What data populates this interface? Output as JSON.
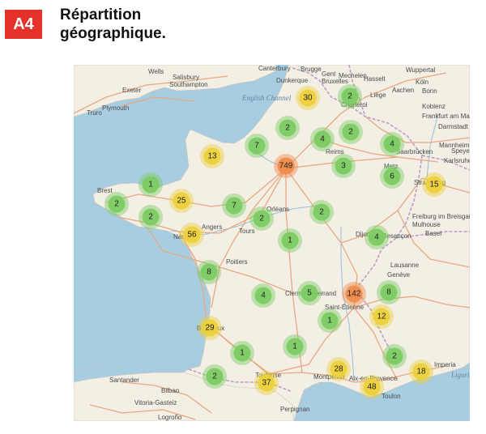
{
  "header": {
    "badge": "A4",
    "title_line1": "Répartition",
    "title_line2": "géographique."
  },
  "colors": {
    "badge": "#e4322b",
    "cluster_small": "#7ccb63",
    "cluster_medium": "#ecd03b",
    "cluster_large": "#f08b4c",
    "sea": "#a9cde0",
    "land": "#f3efe5",
    "roads": "#e8a880",
    "borders": "#b9a0c6"
  },
  "map": {
    "places": [
      "Wells",
      "Salisbury",
      "Southampton",
      "Exeter",
      "Plymouth",
      "Truro",
      "Canterbury",
      "Brugge",
      "Gent",
      "Bruxelles",
      "Mechelen",
      "Hasselt",
      "Wuppertal",
      "Köln",
      "Bonn",
      "Dunkerque",
      "Liège",
      "Aachen",
      "Koblenz",
      "Charleroi",
      "Frankfurt am Main",
      "Darmstadt",
      "Mannheim",
      "Speyer",
      "Karlsruhe",
      "Saarbrücken",
      "Metz",
      "Reims",
      "Strasbourg",
      "Freiburg im Breisgau",
      "Mulhouse",
      "Basel",
      "Brest",
      "Angers",
      "Tours",
      "Orléans",
      "Nantes",
      "Poitiers",
      "Dijon",
      "Besançon",
      "Lausanne",
      "Genève",
      "Clermont-Ferrand",
      "Saint-Étienne",
      "Bordeaux",
      "Santander",
      "Bilbao",
      "Vitoria-Gasteiz",
      "Logroño",
      "Toulouse",
      "Montpellier",
      "Aix-en-Provence",
      "Toulon",
      "Perpignan",
      "Imperia"
    ],
    "seas": [
      "English Channel",
      "Ligurian Sea"
    ],
    "clusters": [
      {
        "label": "30"
      },
      {
        "label": "2"
      },
      {
        "label": "2"
      },
      {
        "label": "4"
      },
      {
        "label": "2"
      },
      {
        "label": "7"
      },
      {
        "label": "4"
      },
      {
        "label": "13"
      },
      {
        "label": "749"
      },
      {
        "label": "3"
      },
      {
        "label": "6"
      },
      {
        "label": "15"
      },
      {
        "label": "1"
      },
      {
        "label": "2"
      },
      {
        "label": "25"
      },
      {
        "label": "7"
      },
      {
        "label": "2"
      },
      {
        "label": "2"
      },
      {
        "label": "2"
      },
      {
        "label": "56"
      },
      {
        "label": "1"
      },
      {
        "label": "4"
      },
      {
        "label": "8"
      },
      {
        "label": "4"
      },
      {
        "label": "5"
      },
      {
        "label": "142"
      },
      {
        "label": "8"
      },
      {
        "label": "12"
      },
      {
        "label": "1"
      },
      {
        "label": "29"
      },
      {
        "label": "1"
      },
      {
        "label": "1"
      },
      {
        "label": "2"
      },
      {
        "label": "2"
      },
      {
        "label": "37"
      },
      {
        "label": "28"
      },
      {
        "label": "48"
      },
      {
        "label": "18"
      }
    ]
  }
}
